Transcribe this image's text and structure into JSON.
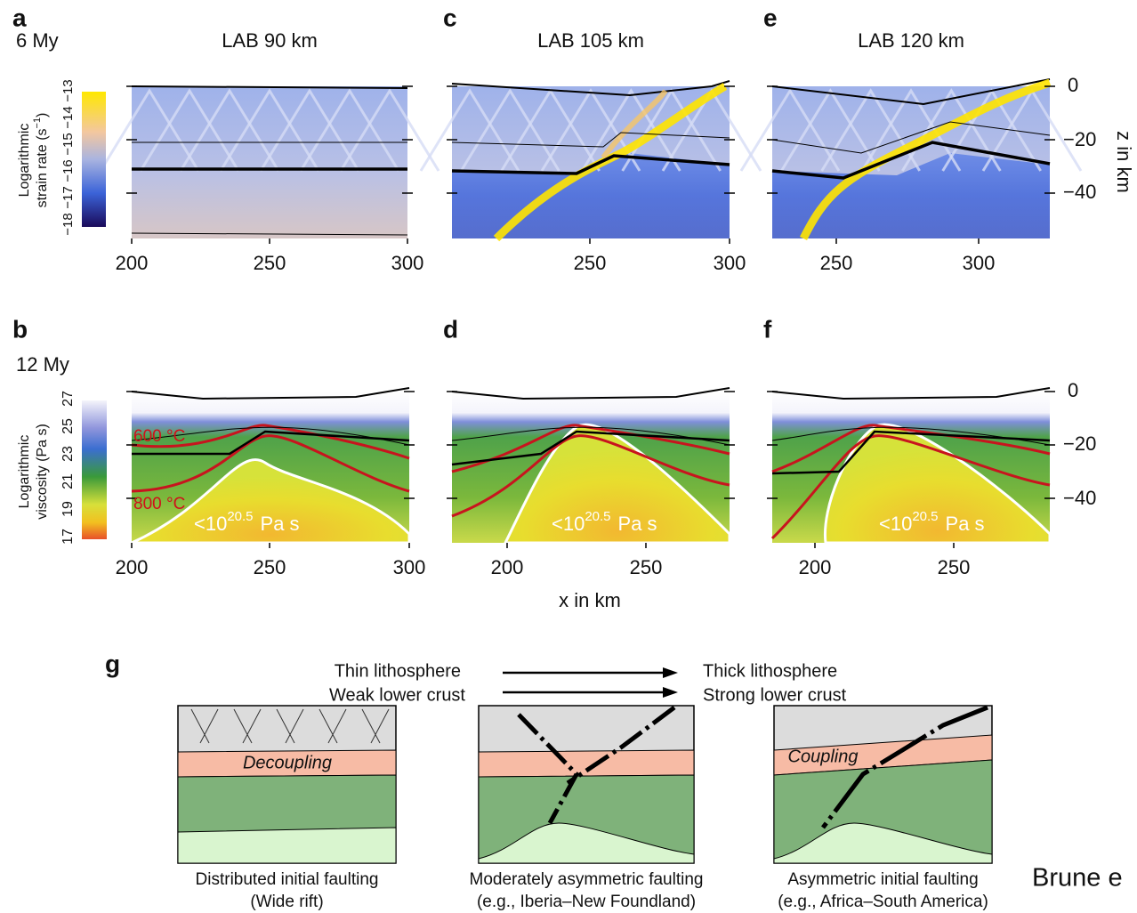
{
  "panels": [
    {
      "letter": "a",
      "time": "6 My",
      "title": "LAB 90 km",
      "xticks": [
        "200",
        "250",
        "300"
      ]
    },
    {
      "letter": "c",
      "title": "LAB 105 km",
      "xticks": [
        "250",
        "300"
      ]
    },
    {
      "letter": "e",
      "title": "LAB 120 km",
      "xticks": [
        "250",
        "300"
      ]
    },
    {
      "letter": "b",
      "time": "12 My",
      "xticks": [
        "200",
        "250",
        "300"
      ],
      "isotherms": [
        "600 °C",
        "800 °C"
      ]
    },
    {
      "letter": "d",
      "xticks": [
        "200",
        "250"
      ]
    },
    {
      "letter": "f",
      "xticks": [
        "200",
        "250"
      ]
    }
  ],
  "zticks": [
    "0",
    "−20",
    "−40"
  ],
  "z_label": "z in km",
  "x_label": "x in km",
  "viscosity_note": {
    "base": "<10",
    "exp": "20.5",
    "unit": "Pa s"
  },
  "strain_colorbar": {
    "line1": "Logarithmic",
    "line2": "strain rate (s",
    "exp": "−1",
    "end": ")",
    "ticks": [
      "−18",
      "−17",
      "−16",
      "−15",
      "−14",
      "−13"
    ]
  },
  "viscosity_colorbar": {
    "line1": "Logarithmic",
    "line2": "viscosity (Pa s)",
    "ticks": [
      "17",
      "19",
      "21",
      "23",
      "25",
      "27"
    ]
  },
  "g": {
    "letter": "g",
    "left_top": "Thin lithosphere",
    "left_bottom": "Weak lower crust",
    "right_top": "Thick lithosphere",
    "right_bottom": "Strong lower crust",
    "sketches": [
      {
        "label": "Decoupling",
        "caption": [
          "Distributed initial faulting",
          "(Wide rift)"
        ]
      },
      {
        "caption": [
          "Moderately asymmetric faulting",
          "(e.g., Iberia–New Foundland)"
        ]
      },
      {
        "label": "Coupling",
        "caption": [
          "Asymmetric initial faulting",
          "(e.g., Africa–South America)"
        ]
      }
    ]
  },
  "credit": "Brune e"
}
